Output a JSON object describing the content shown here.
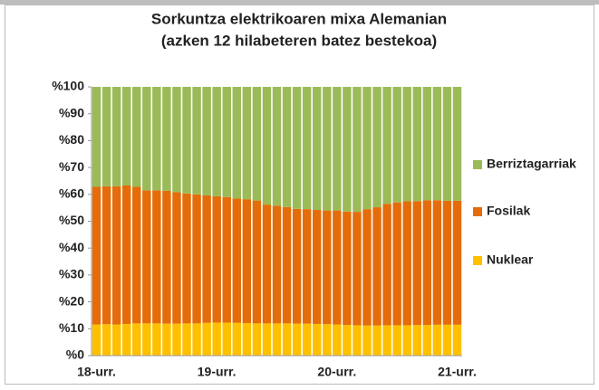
{
  "chart_data": {
    "type": "stacked_bar",
    "title": [
      "Sorkuntza elektrikoaren mixa Alemanian",
      "(azken 12 hilabeteren batez bestekoa)"
    ],
    "categories": [
      "18-urr.",
      null,
      null,
      null,
      null,
      null,
      null,
      null,
      null,
      null,
      null,
      null,
      "19-urr.",
      null,
      null,
      null,
      null,
      null,
      null,
      null,
      null,
      null,
      null,
      null,
      "20-urr.",
      null,
      null,
      null,
      null,
      null,
      null,
      null,
      null,
      null,
      null,
      null,
      "21-urr."
    ],
    "series": [
      {
        "name": "Nuklear",
        "color": "#ffc000",
        "values": [
          11.6,
          11.7,
          11.6,
          11.8,
          12,
          12,
          12,
          11.9,
          11.9,
          12,
          12,
          12.2,
          12.3,
          12.3,
          12.2,
          12.1,
          12,
          12,
          12,
          12,
          11.9,
          11.9,
          11.8,
          11.7,
          11.6,
          11.4,
          11.3,
          11.2,
          11.2,
          11.3,
          11.3,
          11.3,
          11.4,
          11.4,
          11.5,
          11.5,
          11.5
        ]
      },
      {
        "name": "Fosilak",
        "color": "#e46c0a",
        "values": [
          51.2,
          51.3,
          51.4,
          51.5,
          50.8,
          49.5,
          49.5,
          49.4,
          48.9,
          48.3,
          48.0,
          47.4,
          47.0,
          46.7,
          46.3,
          46.1,
          45.7,
          44.2,
          43.8,
          43.3,
          42.7,
          42.6,
          42.4,
          42.3,
          42.4,
          42.2,
          42.2,
          43.3,
          44.0,
          45.2,
          45.7,
          46.1,
          46.1,
          46.4,
          46.3,
          46.1,
          46.1
        ]
      },
      {
        "name": "Berriztagarriak",
        "color": "#9bbb59",
        "values": [
          37.2,
          37,
          37,
          36.7,
          37.2,
          38.5,
          38.5,
          38.7,
          39.2,
          39.7,
          40,
          40.4,
          40.7,
          41,
          41.5,
          41.8,
          42.3,
          43.8,
          44.2,
          44.7,
          45.4,
          45.5,
          45.8,
          46,
          46,
          46.4,
          46.5,
          45.5,
          44.8,
          43.5,
          43,
          42.6,
          42.5,
          42.2,
          42.2,
          42.4,
          42.4
        ]
      }
    ],
    "ylim": [
      0,
      100
    ],
    "yticks": [
      {
        "value": 0,
        "label": "%0"
      },
      {
        "value": 10,
        "label": "%10"
      },
      {
        "value": 20,
        "label": "%20"
      },
      {
        "value": 30,
        "label": "%30"
      },
      {
        "value": 40,
        "label": "%40"
      },
      {
        "value": 50,
        "label": "%50"
      },
      {
        "value": 60,
        "label": "%60"
      },
      {
        "value": 70,
        "label": "%70"
      },
      {
        "value": 80,
        "label": "%80"
      },
      {
        "value": 90,
        "label": "%90"
      },
      {
        "value": 100,
        "label": "%100"
      }
    ],
    "legend": "right"
  }
}
